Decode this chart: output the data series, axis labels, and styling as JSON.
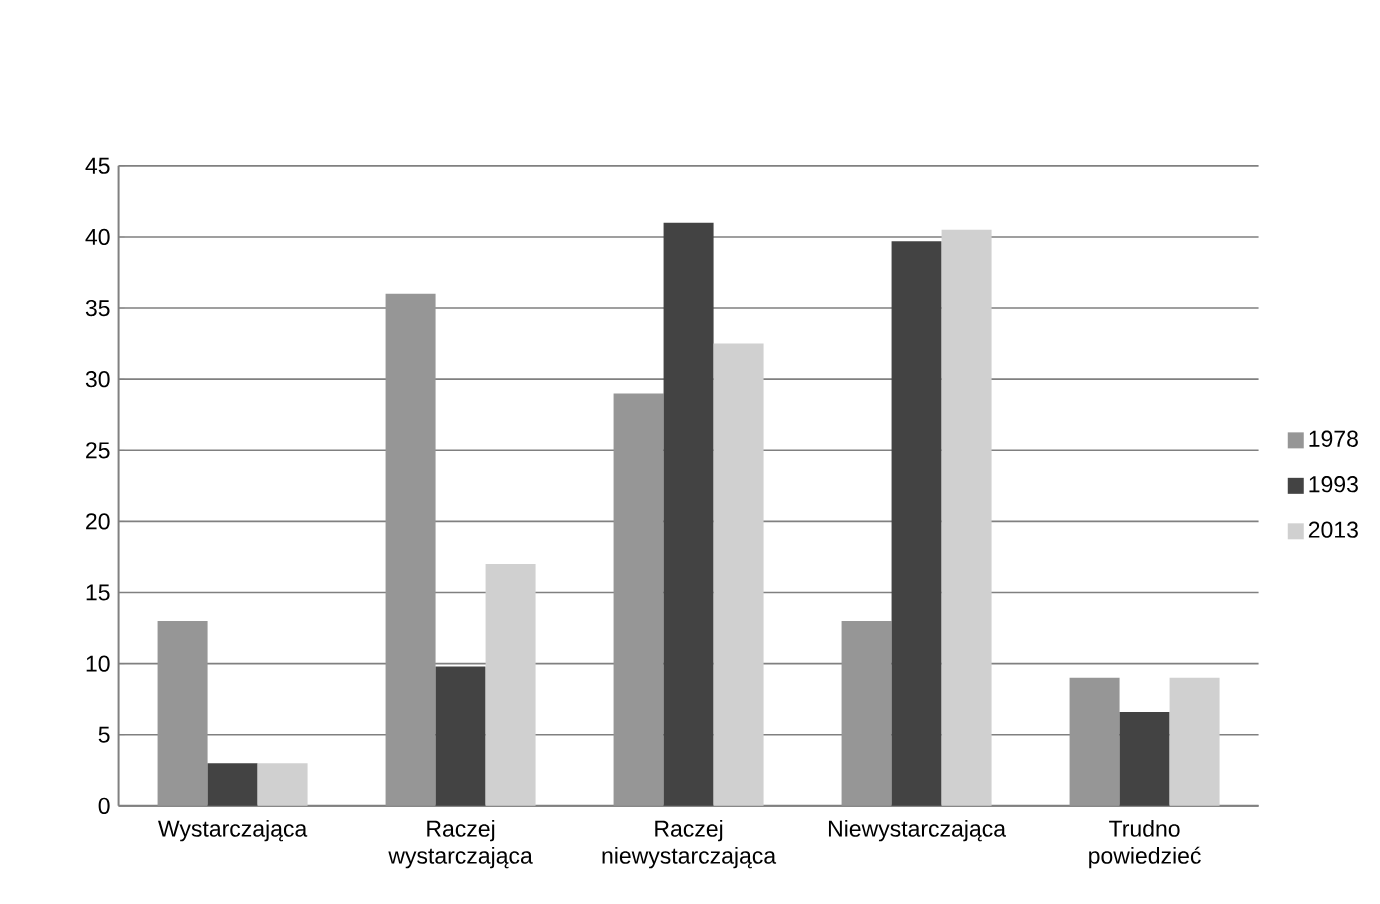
{
  "chart_data": {
    "type": "bar",
    "categories": [
      "Wystarczająca",
      "Raczej wystarczająca",
      "Raczej niewystarczająca",
      "Niewystarczająca",
      "Trudno powiedzieć"
    ],
    "series": [
      {
        "name": "1978",
        "color": "#969696",
        "values": [
          13,
          36,
          29,
          13,
          9
        ]
      },
      {
        "name": "1993",
        "color": "#434343",
        "values": [
          3,
          9.8,
          41,
          39.7,
          6.6
        ]
      },
      {
        "name": "2013",
        "color": "#d0d0d0",
        "values": [
          3,
          17,
          32.5,
          40.5,
          9
        ]
      }
    ],
    "ylim": [
      0,
      45
    ],
    "yticks": [
      0,
      5,
      10,
      15,
      20,
      25,
      30,
      35,
      40,
      45
    ],
    "grid": "y",
    "legend": "right"
  }
}
